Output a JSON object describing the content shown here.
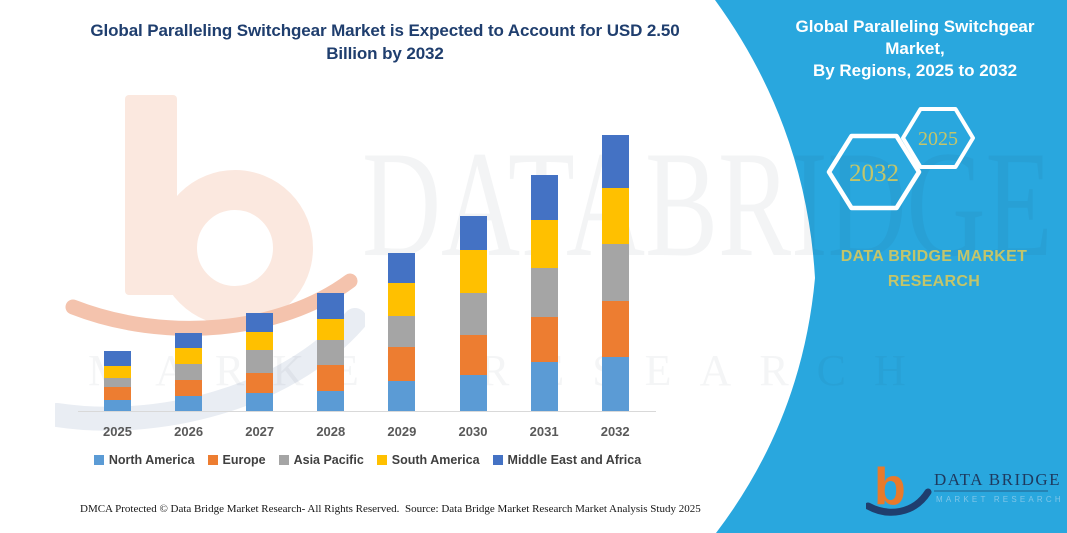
{
  "chart": {
    "title_line1": "Global Paralleling Switchgear Market is Expected to Account for USD 2.50",
    "title_line2": "Billion by 2032"
  },
  "chart_data": {
    "type": "bar",
    "stacked": true,
    "title": "Global Paralleling Switchgear Market is Expected to Account for USD 2.50 Billion by 2032",
    "unit": "USD Billion",
    "categories": [
      "2025",
      "2026",
      "2027",
      "2028",
      "2029",
      "2030",
      "2031",
      "2032"
    ],
    "series": [
      {
        "name": "North America",
        "color": "#5B9BD5",
        "values": [
          0.1,
          0.14,
          0.16,
          0.18,
          0.27,
          0.33,
          0.44,
          0.49
        ]
      },
      {
        "name": "Europe",
        "color": "#ED7D31",
        "values": [
          0.12,
          0.14,
          0.18,
          0.24,
          0.31,
          0.36,
          0.41,
          0.51
        ]
      },
      {
        "name": "Asia Pacific",
        "color": "#A5A5A5",
        "values": [
          0.08,
          0.15,
          0.21,
          0.22,
          0.28,
          0.38,
          0.45,
          0.51
        ]
      },
      {
        "name": "South America",
        "color": "#FFC000",
        "values": [
          0.11,
          0.14,
          0.17,
          0.19,
          0.3,
          0.39,
          0.43,
          0.51
        ]
      },
      {
        "name": "Middle East and Africa",
        "color": "#4472C4",
        "values": [
          0.13,
          0.14,
          0.17,
          0.24,
          0.27,
          0.31,
          0.41,
          0.48
        ]
      }
    ],
    "totals_by_year": [
      0.54,
      0.71,
      0.89,
      1.07,
      1.43,
      1.77,
      2.14,
      2.5
    ],
    "xlabel": "",
    "ylabel": "",
    "ylim": [
      0,
      2.5
    ],
    "grid": false,
    "y_axis_shown": false,
    "legend_position": "bottom"
  },
  "side_panel": {
    "background": "#29A7DE",
    "accent_text_color": "#C3C56A",
    "title_line1": "Global Paralleling Switchgear Market,",
    "title_line2": "By Regions, 2025 to 2032",
    "hexagon_back_label": "2025",
    "hexagon_front_label": "2032",
    "brand_line1": "DATA BRIDGE MARKET",
    "brand_line2": "RESEARCH"
  },
  "logo": {
    "monogram": "b",
    "wordmark": "DATA BRIDGE",
    "subtext": "MARKET RESEARCH"
  },
  "watermark": {
    "text_large": "DATABRIDGE",
    "text_row": "MARKET RESEARCH"
  },
  "footer": {
    "left": "DMCA Protected © Data Bridge Market Research-  All Rights Reserved.",
    "source": "Source: Data Bridge Market Research  Market Analysis Study 2025"
  }
}
